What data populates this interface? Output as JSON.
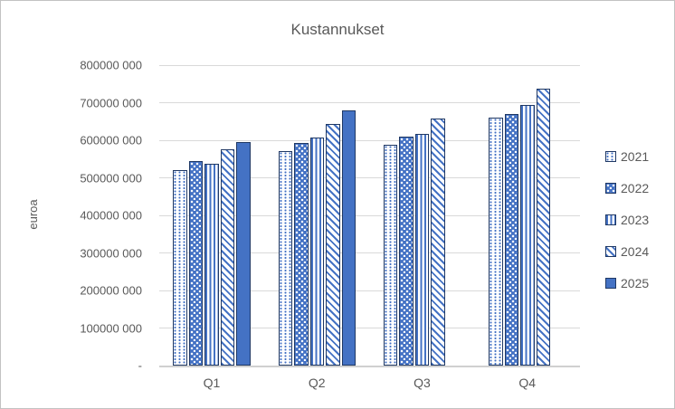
{
  "chart_data": {
    "type": "bar",
    "title": "Kustannukset",
    "ylabel": "euroa",
    "xlabel": "",
    "categories": [
      "Q1",
      "Q2",
      "Q3",
      "Q4"
    ],
    "series": [
      {
        "name": "2021",
        "pattern": "dots-light",
        "values": [
          520000000,
          572000000,
          589000000,
          660000000
        ]
      },
      {
        "name": "2022",
        "pattern": "dots-dense",
        "values": [
          545000000,
          594000000,
          610000000,
          670000000
        ]
      },
      {
        "name": "2023",
        "pattern": "vertical-stripes",
        "values": [
          538000000,
          607000000,
          618000000,
          693000000
        ]
      },
      {
        "name": "2024",
        "pattern": "diagonal-stripes",
        "values": [
          577000000,
          643000000,
          659000000,
          738000000
        ]
      },
      {
        "name": "2025",
        "pattern": "solid",
        "values": [
          595000000,
          680000000,
          null,
          null
        ]
      }
    ],
    "ylim": [
      0,
      800000000
    ],
    "ytick_step": 100000000,
    "ytick_labels": [
      " -",
      "100000 000",
      "200000 000",
      "300000 000",
      "400000 000",
      "500000 000",
      "600000 000",
      "700000 000",
      "800000 000"
    ],
    "grid": true,
    "legend_position": "right",
    "colors": {
      "bar_fill": "#4472C4",
      "bar_border": "#1F3864",
      "text": "#595959",
      "gridline": "#D9D9D9"
    }
  }
}
